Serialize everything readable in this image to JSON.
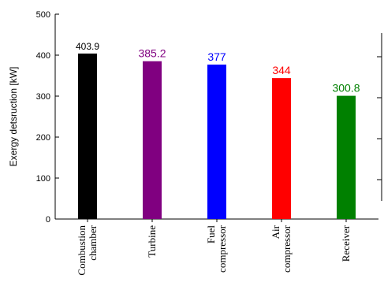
{
  "chart_data": {
    "type": "bar",
    "categories": [
      [
        "Combustion",
        "chamber"
      ],
      [
        "Turbine"
      ],
      [
        "Fuel",
        "compressor"
      ],
      [
        "Air",
        "compressor"
      ],
      [
        "Receiver"
      ]
    ],
    "values": [
      403.9,
      385.2,
      377,
      344,
      300.8
    ],
    "value_labels": [
      "403.9",
      "385.2",
      "377",
      "344",
      "300.8"
    ],
    "colors": [
      "#000000",
      "#800080",
      "#0000ff",
      "#ff0000",
      "#008000"
    ],
    "label_colors": [
      "#000000",
      "#800080",
      "#0000ff",
      "#ff0000",
      "#008000"
    ],
    "ylabel": "Exergy detsruction [kW]",
    "xlabel": "",
    "title": "",
    "ylim": [
      0,
      500
    ],
    "yticks": [
      0,
      100,
      200,
      300,
      400,
      500
    ],
    "grid": false,
    "legend": "none"
  }
}
